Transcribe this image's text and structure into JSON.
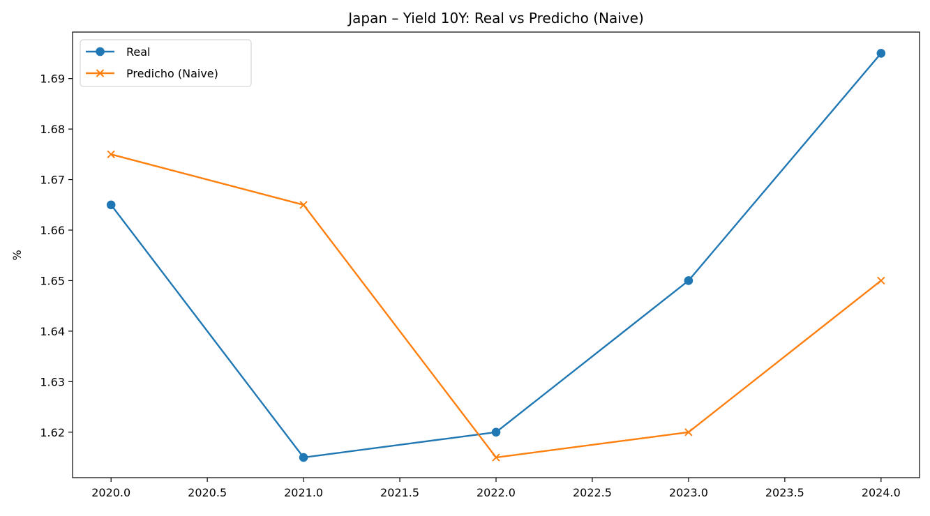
{
  "chart_data": {
    "type": "line",
    "title": "Japan – Yield 10Y: Real vs Predicho (Naive)",
    "xlabel": "",
    "ylabel": "%",
    "x": [
      2020,
      2021,
      2022,
      2023,
      2024
    ],
    "xlim": [
      2019.8,
      2024.2
    ],
    "ylim": [
      1.611,
      1.6992
    ],
    "xticks": [
      2020.0,
      2020.5,
      2021.0,
      2021.5,
      2022.0,
      2022.5,
      2023.0,
      2023.5,
      2024.0
    ],
    "xtick_labels": [
      "2020.0",
      "2020.5",
      "2021.0",
      "2021.5",
      "2022.0",
      "2022.5",
      "2023.0",
      "2023.5",
      "2024.0"
    ],
    "yticks": [
      1.62,
      1.63,
      1.64,
      1.65,
      1.66,
      1.67,
      1.68,
      1.69
    ],
    "ytick_labels": [
      "1.62",
      "1.63",
      "1.64",
      "1.65",
      "1.66",
      "1.67",
      "1.68",
      "1.69"
    ],
    "grid": false,
    "legend_position": "top-left",
    "series": [
      {
        "name": "Real",
        "values": [
          1.665,
          1.615,
          1.62,
          1.65,
          1.695
        ],
        "color": "#1f77b4",
        "marker": "circle"
      },
      {
        "name": "Predicho (Naive)",
        "values": [
          1.675,
          1.665,
          1.615,
          1.62,
          1.65
        ],
        "color": "#ff7f0e",
        "marker": "x"
      }
    ]
  }
}
